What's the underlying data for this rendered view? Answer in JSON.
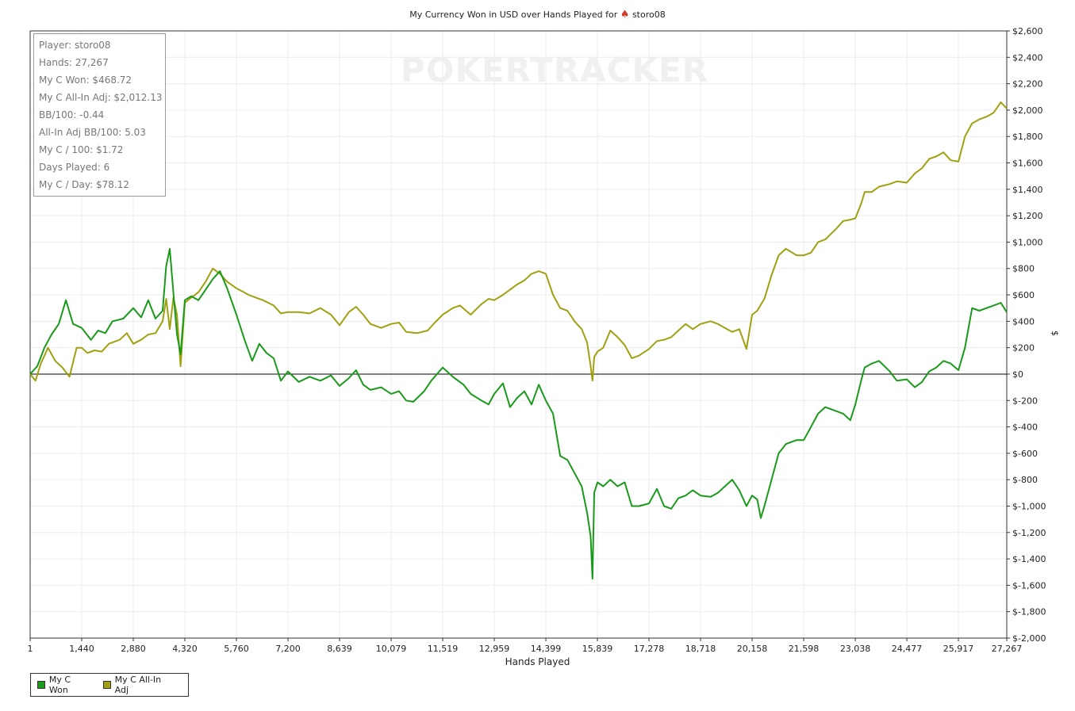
{
  "title_prefix": "My Currency Won in USD over Hands Played for",
  "title_player": "storo08",
  "watermark": "POKERTRACKER",
  "stats": [
    "Player: storo08",
    "Hands: 27,267",
    "My C Won: $468.72",
    "My C All-In Adj: $2,012.13",
    "BB/100: -0.44",
    "All-In Adj BB/100: 5.03",
    "My C / 100: $1.72",
    "Days Played: 6",
    "My C / Day: $78.12"
  ],
  "legend": [
    {
      "label": "My C Won",
      "color": "#1a9a1a"
    },
    {
      "label": "My C All-In Adj",
      "color": "#a0a010"
    }
  ],
  "chart_data": {
    "type": "line",
    "xlabel": "Hands Played",
    "ylabel": "$",
    "xlim": [
      1,
      27267
    ],
    "ylim": [
      -2000,
      2600
    ],
    "x_ticks": [
      1,
      1440,
      2880,
      4320,
      5760,
      7200,
      8639,
      10079,
      11519,
      12959,
      14399,
      15839,
      17278,
      18718,
      20158,
      21598,
      23038,
      24477,
      25917,
      27267
    ],
    "x_tick_labels": [
      "1",
      "1,440",
      "2,880",
      "4,320",
      "5,760",
      "7,200",
      "8,639",
      "10,079",
      "11,519",
      "12,959",
      "14,399",
      "15,839",
      "17,278",
      "18,718",
      "20,158",
      "21,598",
      "23,038",
      "24,477",
      "25,917",
      "27,267"
    ],
    "y_ticks": [
      2600,
      2400,
      2200,
      2000,
      1800,
      1600,
      1400,
      1200,
      1000,
      800,
      600,
      400,
      200,
      0,
      -200,
      -400,
      -600,
      -800,
      -1000,
      -1200,
      -1400,
      -1600,
      -1800,
      -2000
    ],
    "y_tick_labels": [
      "$2,600",
      "$2,400",
      "$2,200",
      "$2,000",
      "$1,800",
      "$1,600",
      "$1,400",
      "$1,200",
      "$1,000",
      "$800",
      "$600",
      "$400",
      "$200",
      "$0",
      "$-200",
      "$-400",
      "$-600",
      "$-800",
      "$-1,000",
      "$-1,200",
      "$-1,400",
      "$-1,600",
      "$-1,800",
      "$-2,000"
    ],
    "grid": true,
    "series": [
      {
        "name": "My C Won",
        "color": "#1a9a1a",
        "points": [
          [
            1,
            0
          ],
          [
            200,
            60
          ],
          [
            400,
            200
          ],
          [
            600,
            300
          ],
          [
            800,
            380
          ],
          [
            1000,
            560
          ],
          [
            1200,
            380
          ],
          [
            1440,
            350
          ],
          [
            1700,
            260
          ],
          [
            1900,
            330
          ],
          [
            2100,
            310
          ],
          [
            2300,
            400
          ],
          [
            2600,
            420
          ],
          [
            2880,
            500
          ],
          [
            3100,
            430
          ],
          [
            3300,
            560
          ],
          [
            3500,
            420
          ],
          [
            3700,
            480
          ],
          [
            3800,
            820
          ],
          [
            3900,
            950
          ],
          [
            4000,
            620
          ],
          [
            4100,
            300
          ],
          [
            4200,
            150
          ],
          [
            4320,
            560
          ],
          [
            4500,
            590
          ],
          [
            4700,
            560
          ],
          [
            4900,
            640
          ],
          [
            5100,
            720
          ],
          [
            5300,
            780
          ],
          [
            5500,
            650
          ],
          [
            5760,
            450
          ],
          [
            6000,
            250
          ],
          [
            6200,
            100
          ],
          [
            6400,
            230
          ],
          [
            6600,
            160
          ],
          [
            6800,
            120
          ],
          [
            7000,
            -50
          ],
          [
            7200,
            20
          ],
          [
            7500,
            -60
          ],
          [
            7800,
            -20
          ],
          [
            8100,
            -50
          ],
          [
            8400,
            -10
          ],
          [
            8639,
            -90
          ],
          [
            8900,
            -30
          ],
          [
            9100,
            30
          ],
          [
            9300,
            -80
          ],
          [
            9500,
            -120
          ],
          [
            9800,
            -100
          ],
          [
            10079,
            -150
          ],
          [
            10300,
            -130
          ],
          [
            10500,
            -200
          ],
          [
            10700,
            -210
          ],
          [
            11000,
            -130
          ],
          [
            11200,
            -50
          ],
          [
            11519,
            50
          ],
          [
            11800,
            -20
          ],
          [
            12100,
            -80
          ],
          [
            12300,
            -150
          ],
          [
            12600,
            -200
          ],
          [
            12800,
            -230
          ],
          [
            12959,
            -150
          ],
          [
            13200,
            -70
          ],
          [
            13400,
            -250
          ],
          [
            13600,
            -180
          ],
          [
            13800,
            -130
          ],
          [
            14000,
            -230
          ],
          [
            14200,
            -80
          ],
          [
            14399,
            -200
          ],
          [
            14600,
            -300
          ],
          [
            14800,
            -620
          ],
          [
            15000,
            -650
          ],
          [
            15200,
            -750
          ],
          [
            15400,
            -850
          ],
          [
            15550,
            -1050
          ],
          [
            15650,
            -1230
          ],
          [
            15700,
            -1550
          ],
          [
            15750,
            -900
          ],
          [
            15839,
            -820
          ],
          [
            16000,
            -850
          ],
          [
            16200,
            -800
          ],
          [
            16400,
            -850
          ],
          [
            16600,
            -820
          ],
          [
            16800,
            -1000
          ],
          [
            17000,
            -1000
          ],
          [
            17278,
            -980
          ],
          [
            17500,
            -870
          ],
          [
            17700,
            -1000
          ],
          [
            17900,
            -1020
          ],
          [
            18100,
            -940
          ],
          [
            18300,
            -920
          ],
          [
            18500,
            -880
          ],
          [
            18718,
            -920
          ],
          [
            19000,
            -930
          ],
          [
            19200,
            -900
          ],
          [
            19400,
            -850
          ],
          [
            19600,
            -800
          ],
          [
            19800,
            -880
          ],
          [
            20000,
            -1000
          ],
          [
            20158,
            -920
          ],
          [
            20300,
            -950
          ],
          [
            20400,
            -1090
          ],
          [
            20500,
            -1000
          ],
          [
            20700,
            -800
          ],
          [
            20900,
            -600
          ],
          [
            21100,
            -530
          ],
          [
            21400,
            -500
          ],
          [
            21598,
            -500
          ],
          [
            21800,
            -400
          ],
          [
            22000,
            -300
          ],
          [
            22200,
            -250
          ],
          [
            22500,
            -280
          ],
          [
            22700,
            -300
          ],
          [
            22900,
            -350
          ],
          [
            23038,
            -230
          ],
          [
            23200,
            -50
          ],
          [
            23300,
            50
          ],
          [
            23500,
            80
          ],
          [
            23700,
            100
          ],
          [
            24000,
            20
          ],
          [
            24200,
            -50
          ],
          [
            24477,
            -40
          ],
          [
            24700,
            -100
          ],
          [
            24900,
            -60
          ],
          [
            25100,
            20
          ],
          [
            25300,
            50
          ],
          [
            25500,
            100
          ],
          [
            25700,
            80
          ],
          [
            25917,
            30
          ],
          [
            26100,
            200
          ],
          [
            26300,
            500
          ],
          [
            26500,
            480
          ],
          [
            26700,
            500
          ],
          [
            26900,
            520
          ],
          [
            27100,
            540
          ],
          [
            27267,
            468.72
          ]
        ]
      },
      {
        "name": "My C All-In Adj",
        "color": "#a0a010",
        "points": [
          [
            1,
            0
          ],
          [
            150,
            -50
          ],
          [
            300,
            80
          ],
          [
            500,
            200
          ],
          [
            700,
            100
          ],
          [
            900,
            50
          ],
          [
            1100,
            -20
          ],
          [
            1300,
            200
          ],
          [
            1440,
            200
          ],
          [
            1600,
            160
          ],
          [
            1800,
            180
          ],
          [
            2000,
            170
          ],
          [
            2200,
            230
          ],
          [
            2500,
            260
          ],
          [
            2700,
            310
          ],
          [
            2880,
            230
          ],
          [
            3100,
            260
          ],
          [
            3300,
            300
          ],
          [
            3500,
            310
          ],
          [
            3700,
            400
          ],
          [
            3800,
            570
          ],
          [
            3900,
            340
          ],
          [
            4000,
            580
          ],
          [
            4100,
            450
          ],
          [
            4200,
            60
          ],
          [
            4320,
            540
          ],
          [
            4500,
            580
          ],
          [
            4700,
            620
          ],
          [
            4900,
            700
          ],
          [
            5100,
            800
          ],
          [
            5300,
            760
          ],
          [
            5500,
            700
          ],
          [
            5760,
            650
          ],
          [
            5900,
            630
          ],
          [
            6100,
            600
          ],
          [
            6300,
            580
          ],
          [
            6500,
            560
          ],
          [
            6800,
            520
          ],
          [
            7000,
            460
          ],
          [
            7200,
            470
          ],
          [
            7500,
            470
          ],
          [
            7800,
            460
          ],
          [
            8100,
            500
          ],
          [
            8400,
            450
          ],
          [
            8639,
            370
          ],
          [
            8900,
            470
          ],
          [
            9100,
            510
          ],
          [
            9300,
            450
          ],
          [
            9500,
            380
          ],
          [
            9800,
            350
          ],
          [
            10079,
            380
          ],
          [
            10300,
            390
          ],
          [
            10500,
            320
          ],
          [
            10800,
            310
          ],
          [
            11100,
            330
          ],
          [
            11300,
            390
          ],
          [
            11519,
            450
          ],
          [
            11800,
            500
          ],
          [
            12000,
            520
          ],
          [
            12300,
            450
          ],
          [
            12600,
            530
          ],
          [
            12800,
            570
          ],
          [
            12959,
            560
          ],
          [
            13200,
            600
          ],
          [
            13400,
            640
          ],
          [
            13600,
            680
          ],
          [
            13800,
            710
          ],
          [
            14000,
            760
          ],
          [
            14200,
            780
          ],
          [
            14399,
            760
          ],
          [
            14600,
            600
          ],
          [
            14800,
            500
          ],
          [
            15000,
            480
          ],
          [
            15200,
            400
          ],
          [
            15400,
            340
          ],
          [
            15550,
            240
          ],
          [
            15650,
            60
          ],
          [
            15700,
            -50
          ],
          [
            15750,
            130
          ],
          [
            15839,
            170
          ],
          [
            16000,
            200
          ],
          [
            16200,
            330
          ],
          [
            16400,
            280
          ],
          [
            16600,
            220
          ],
          [
            16800,
            120
          ],
          [
            17000,
            140
          ],
          [
            17278,
            190
          ],
          [
            17500,
            250
          ],
          [
            17700,
            260
          ],
          [
            17900,
            280
          ],
          [
            18100,
            330
          ],
          [
            18300,
            380
          ],
          [
            18500,
            340
          ],
          [
            18718,
            380
          ],
          [
            19000,
            400
          ],
          [
            19200,
            380
          ],
          [
            19400,
            350
          ],
          [
            19600,
            320
          ],
          [
            19800,
            340
          ],
          [
            20000,
            190
          ],
          [
            20158,
            450
          ],
          [
            20300,
            480
          ],
          [
            20500,
            570
          ],
          [
            20700,
            750
          ],
          [
            20900,
            900
          ],
          [
            21100,
            950
          ],
          [
            21400,
            900
          ],
          [
            21598,
            900
          ],
          [
            21800,
            920
          ],
          [
            22000,
            1000
          ],
          [
            22200,
            1020
          ],
          [
            22500,
            1100
          ],
          [
            22700,
            1160
          ],
          [
            22900,
            1170
          ],
          [
            23038,
            1180
          ],
          [
            23200,
            1290
          ],
          [
            23300,
            1380
          ],
          [
            23500,
            1380
          ],
          [
            23700,
            1420
          ],
          [
            24000,
            1440
          ],
          [
            24200,
            1460
          ],
          [
            24477,
            1450
          ],
          [
            24700,
            1520
          ],
          [
            24900,
            1560
          ],
          [
            25100,
            1630
          ],
          [
            25300,
            1650
          ],
          [
            25500,
            1680
          ],
          [
            25700,
            1620
          ],
          [
            25917,
            1610
          ],
          [
            26100,
            1800
          ],
          [
            26300,
            1900
          ],
          [
            26500,
            1930
          ],
          [
            26700,
            1950
          ],
          [
            26900,
            1980
          ],
          [
            27100,
            2060
          ],
          [
            27267,
            2012.13
          ]
        ]
      }
    ]
  }
}
